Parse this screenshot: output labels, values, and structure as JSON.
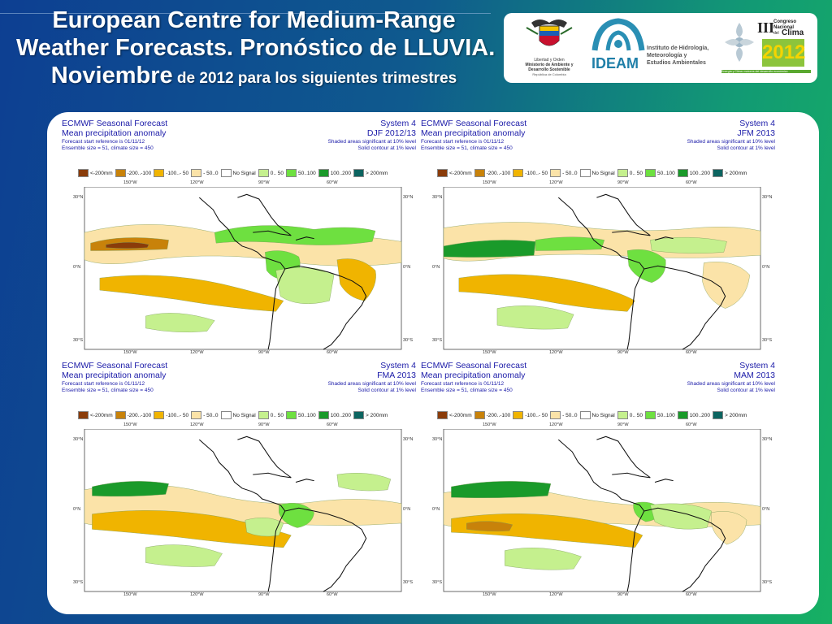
{
  "title": {
    "line1": "European Centre for Medium-Range",
    "line2": "Weather Forecasts. Pronóstico de LLUVIA.",
    "line3_big": "Noviembre",
    "line3_small": " de 2012 para los siguientes trimestres"
  },
  "logos": {
    "gov_text1": "Libertad y Orden",
    "gov_text2": "Ministerio de Ambiente y",
    "gov_text3": "Desarrollo Sostenible",
    "gov_text4": "República de Colombia",
    "ideam": "IDEAM",
    "ideam_text1": "Instituto de Hidrología,",
    "ideam_text2": "Meteorología y",
    "ideam_text3": "Estudios Ambientales",
    "congress_roman": "III",
    "congress_t1": "Congreso",
    "congress_t2": "Nacional",
    "congress_t3": "del",
    "congress_t4": "Clima",
    "congress_year": "2012",
    "congress_tag": "Energía y Clima: motores del desarrollo económico"
  },
  "common": {
    "title1": "ECMWF Seasonal Forecast",
    "title2": "Mean precipitation anomaly",
    "line3": "Forecast start reference is 01/11/12",
    "line4": "Ensemble size = 51, climate size = 450",
    "system": "System 4",
    "sig1": "Shaded areas significant at 10% level",
    "sig2": "Solid contour at 1% level"
  },
  "legend": [
    {
      "label": "<-200mm",
      "color": "#8a3c0a"
    },
    {
      "label": "-200..-100",
      "color": "#c8820a"
    },
    {
      "label": "-100..- 50",
      "color": "#f0b400"
    },
    {
      "label": "- 50..0",
      "color": "#fbe3a8"
    },
    {
      "label": "No Signal",
      "color": "#ffffff"
    },
    {
      "label": "0.. 50",
      "color": "#c5f08e"
    },
    {
      "label": "50..100",
      "color": "#6ee040"
    },
    {
      "label": "100..200",
      "color": "#1a9a2a"
    },
    {
      "label": "> 200mm",
      "color": "#0c6460"
    }
  ],
  "maps": [
    {
      "period": "DJF 2012/13"
    },
    {
      "period": "JFM 2013"
    },
    {
      "period": "FMA 2013"
    },
    {
      "period": "MAM 2013"
    }
  ],
  "axis": {
    "lon": [
      "150°W",
      "120°W",
      "90°W",
      "60°W"
    ],
    "lat": [
      "30°N",
      "0°N",
      "30°S"
    ]
  }
}
